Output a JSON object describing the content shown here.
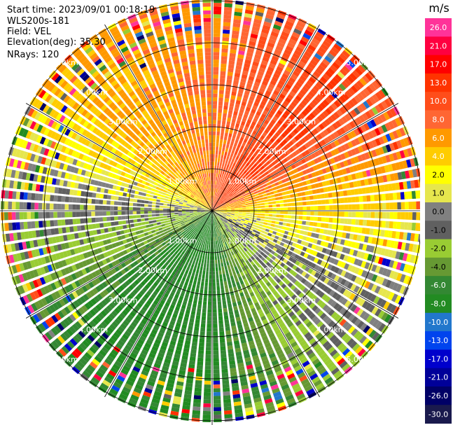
{
  "info": {
    "start_time": "Start time: 2023/09/01 00:18:19",
    "instrument": "WLS200s-181",
    "field": "Field: VEL",
    "elevation": "Elevation(deg): 35.30",
    "nrays": "NRays: 120"
  },
  "colorbar": {
    "unit": "m/s",
    "ticks": [
      "26.0",
      "21.0",
      "17.0",
      "13.0",
      "10.0",
      "8.0",
      "6.0",
      "4.0",
      "2.0",
      "1.0",
      "0.0",
      "-1.0",
      "-2.0",
      "-4.0",
      "-6.0",
      "-8.0",
      "-10.0",
      "-13.0",
      "-17.0",
      "-21.0",
      "-26.0",
      "-30.0"
    ],
    "colors": [
      "#ff3399",
      "#ff0040",
      "#ff0000",
      "#ff3300",
      "#ff4d1a",
      "#ff6633",
      "#ff9900",
      "#ffcc00",
      "#ffff00",
      "#e6e64d",
      "#808080",
      "#606060",
      "#99cc33",
      "#669933",
      "#338833",
      "#228b22",
      "#2277cc",
      "#0044ee",
      "#0000cc",
      "#000099",
      "#000066",
      "#1a1a4d"
    ]
  },
  "chart_data": {
    "type": "heatmap",
    "projection": "polar PPI",
    "nrays": 120,
    "range_rings_km": [
      1.0,
      2.0,
      3.0,
      4.0,
      5.0
    ],
    "range_ring_labels": [
      "1.00km",
      "2.00km",
      "3.00km",
      "4.00km",
      "5.00km"
    ],
    "max_range_km": 5.5,
    "value_range": [
      -30.0,
      26.0
    ],
    "radial_velocity_pattern": [
      {
        "azimuth_deg": 0,
        "value": 6.0
      },
      {
        "azimuth_deg": 45,
        "value": 10.0
      },
      {
        "azimuth_deg": 90,
        "value": 2.0
      },
      {
        "azimuth_deg": 135,
        "value": -2.0
      },
      {
        "azimuth_deg": 180,
        "value": -8.0
      },
      {
        "azimuth_deg": 225,
        "value": -8.0
      },
      {
        "azimuth_deg": 270,
        "value": -1.0
      },
      {
        "azimuth_deg": 315,
        "value": 4.0
      }
    ]
  }
}
